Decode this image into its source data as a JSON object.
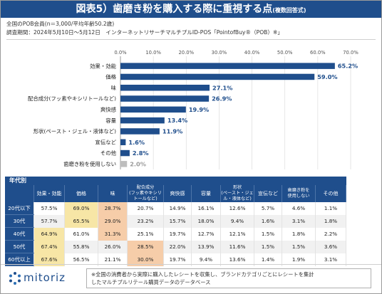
{
  "header": {
    "title": "図表5）歯磨き粉を購入する際に重視する点",
    "subtitle": "(複数回答式)"
  },
  "meta": {
    "line1": "全国のPOB会員(n＝3,000/平均年齢50.2歳)",
    "line2": "調査期間：2024年5月10日～5月12日　インターネットリサーチマルチプルID-POS「PointofBuy®（POB）※」"
  },
  "chart_data": {
    "type": "bar",
    "orientation": "horizontal",
    "categories": [
      "効果・効能",
      "価格",
      "味",
      "配合成分(フッ素やキシリトールなど)",
      "爽快感",
      "容量",
      "形状(ペースト・ジェル・液体など)",
      "宣伝など",
      "その他",
      "歯磨き粉を使用しない"
    ],
    "values": [
      65.2,
      59.0,
      27.1,
      26.9,
      19.9,
      13.4,
      11.9,
      1.6,
      2.8,
      2.0
    ],
    "value_labels": [
      "65.2%",
      "59.0%",
      "27.1%",
      "26.9%",
      "19.9%",
      "13.4%",
      "11.9%",
      "1.6%",
      "2.8%",
      "2.0%"
    ],
    "ticks": [
      "0.0%",
      "10.0%",
      "20.0%",
      "30.0%",
      "40.0%",
      "50.0%",
      "60.0%",
      "70.0%"
    ],
    "xlim": [
      0,
      70
    ],
    "grid": true,
    "colors": {
      "bar": "#1f4e8c",
      "bar_last": "#bdbdbd"
    }
  },
  "table": {
    "corner_label": "年代別",
    "headers": [
      "効果・効能",
      "価格",
      "味",
      "配合成分\n(フッ素やキシリ\nトールなど)",
      "爽快感",
      "容量",
      "形状\n(ペースト・ジェ\nル・液体など)",
      "宣伝など",
      "歯磨き粉を\n使用しない",
      "その他"
    ],
    "rows": [
      {
        "label": "20代以下",
        "cells": [
          "57.5%",
          "69.0%",
          "28.7%",
          "20.7%",
          "14.9%",
          "16.1%",
          "12.6%",
          "5.7%",
          "4.6%",
          "1.1%"
        ],
        "hl": [
          0,
          1,
          2,
          0,
          0,
          0,
          0,
          0,
          0,
          0
        ]
      },
      {
        "label": "30代",
        "cells": [
          "57.7%",
          "65.5%",
          "29.0%",
          "23.2%",
          "15.7%",
          "18.0%",
          "9.4%",
          "1.6%",
          "3.1%",
          "1.8%"
        ],
        "hl": [
          0,
          1,
          2,
          0,
          0,
          0,
          0,
          0,
          0,
          0
        ]
      },
      {
        "label": "40代",
        "cells": [
          "64.9%",
          "61.0%",
          "31.3%",
          "25.1%",
          "19.7%",
          "12.7%",
          "12.1%",
          "1.5%",
          "1.8%",
          "2.2%"
        ],
        "hl": [
          1,
          0,
          2,
          0,
          0,
          0,
          0,
          0,
          0,
          0
        ]
      },
      {
        "label": "50代",
        "cells": [
          "67.4%",
          "55.8%",
          "26.0%",
          "28.5%",
          "22.0%",
          "13.9%",
          "11.6%",
          "1.5%",
          "1.5%",
          "3.6%"
        ],
        "hl": [
          1,
          0,
          0,
          2,
          0,
          0,
          0,
          0,
          0,
          0
        ]
      },
      {
        "label": "60代以上",
        "cells": [
          "67.6%",
          "56.5%",
          "21.1%",
          "30.0%",
          "19.7%",
          "9.4%",
          "13.6%",
          "1.4%",
          "1.9%",
          "3.1%"
        ],
        "hl": [
          1,
          0,
          0,
          2,
          0,
          0,
          0,
          0,
          0,
          0
        ]
      }
    ]
  },
  "footer": {
    "logo": "mitoriz",
    "note_line1": "※全国の消費者から実際に購入したレシートを収集し、ブランドカテゴリごとにレシートを集計",
    "note_line2": "したマルチプルリテール購買データのデータベース"
  }
}
